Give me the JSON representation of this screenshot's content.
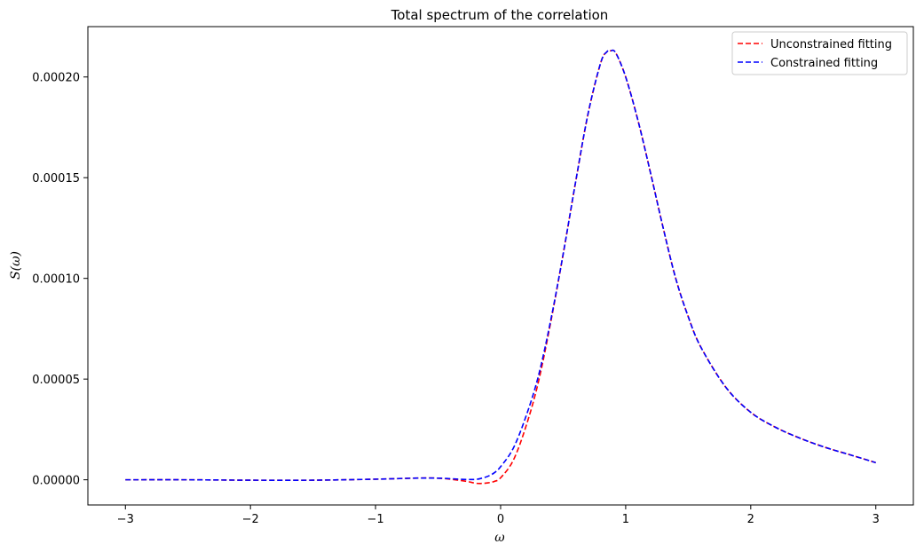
{
  "chart_data": {
    "type": "line",
    "title": "Total spectrum of the correlation",
    "xlabel": "ω",
    "ylabel": "S(ω)",
    "xlim": [
      -3.3,
      3.3
    ],
    "ylim": [
      -1.25e-05,
      0.000225
    ],
    "xticks": [
      -3,
      -2,
      -1,
      0,
      1,
      2,
      3
    ],
    "xtick_labels": [
      "−3",
      "−2",
      "−1",
      "0",
      "1",
      "2",
      "3"
    ],
    "yticks": [
      0,
      5e-05,
      0.0001,
      0.00015,
      0.0002
    ],
    "ytick_labels": [
      "0.00000",
      "0.00005",
      "0.00010",
      "0.00015",
      "0.00020"
    ],
    "grid": false,
    "legend_position": "top-right",
    "series": [
      {
        "name": "Unconstrained fitting",
        "color": "#ff0000",
        "style": "dashed",
        "x": [
          -3.0,
          -2.5,
          -2.0,
          -1.5,
          -1.0,
          -0.7,
          -0.5,
          -0.3,
          -0.2,
          -0.15,
          -0.1,
          -0.05,
          0.0,
          0.1,
          0.2,
          0.3,
          0.4,
          0.5,
          0.6,
          0.7,
          0.8,
          0.85,
          0.88,
          0.92,
          1.0,
          1.1,
          1.2,
          1.3,
          1.4,
          1.5,
          1.6,
          1.8,
          2.0,
          2.2,
          2.4,
          2.6,
          2.8,
          3.0
        ],
        "y": [
          0.0,
          0.0,
          -2e-07,
          -2e-07,
          3e-07,
          8e-07,
          8e-07,
          -5e-07,
          -1.7e-06,
          -1.8e-06,
          -1.5e-06,
          -8e-07,
          1e-06,
          9.5e-06,
          2.6e-05,
          4.8e-05,
          7.8e-05,
          0.000112,
          0.000148,
          0.000182,
          0.000207,
          0.0002125,
          0.000213,
          0.000212,
          0.0002,
          0.000178,
          0.000152,
          0.000125,
          0.0001,
          8.1e-05,
          6.6e-05,
          4.6e-05,
          3.35e-05,
          2.6e-05,
          2.05e-05,
          1.6e-05,
          1.23e-05,
          8.5e-06
        ]
      },
      {
        "name": "Constrained fitting",
        "color": "#0000ff",
        "style": "dashed",
        "x": [
          -3.0,
          -2.5,
          -2.0,
          -1.5,
          -1.0,
          -0.7,
          -0.5,
          -0.3,
          -0.2,
          -0.15,
          -0.1,
          -0.05,
          0.0,
          0.1,
          0.2,
          0.3,
          0.4,
          0.5,
          0.6,
          0.7,
          0.8,
          0.85,
          0.88,
          0.92,
          1.0,
          1.1,
          1.2,
          1.3,
          1.4,
          1.5,
          1.6,
          1.8,
          2.0,
          2.2,
          2.4,
          2.6,
          2.8,
          3.0
        ],
        "y": [
          0.0,
          0.0,
          -2e-07,
          -2e-07,
          3e-07,
          8e-07,
          8e-07,
          2e-07,
          2e-07,
          8e-07,
          1.8e-06,
          3.5e-06,
          6.5e-06,
          1.55e-05,
          3.1e-05,
          5.1e-05,
          7.9e-05,
          0.000112,
          0.000148,
          0.000182,
          0.000207,
          0.0002125,
          0.000213,
          0.000212,
          0.0002,
          0.000178,
          0.000152,
          0.000125,
          0.0001,
          8.1e-05,
          6.6e-05,
          4.6e-05,
          3.35e-05,
          2.6e-05,
          2.05e-05,
          1.6e-05,
          1.23e-05,
          8.5e-06
        ]
      }
    ]
  }
}
